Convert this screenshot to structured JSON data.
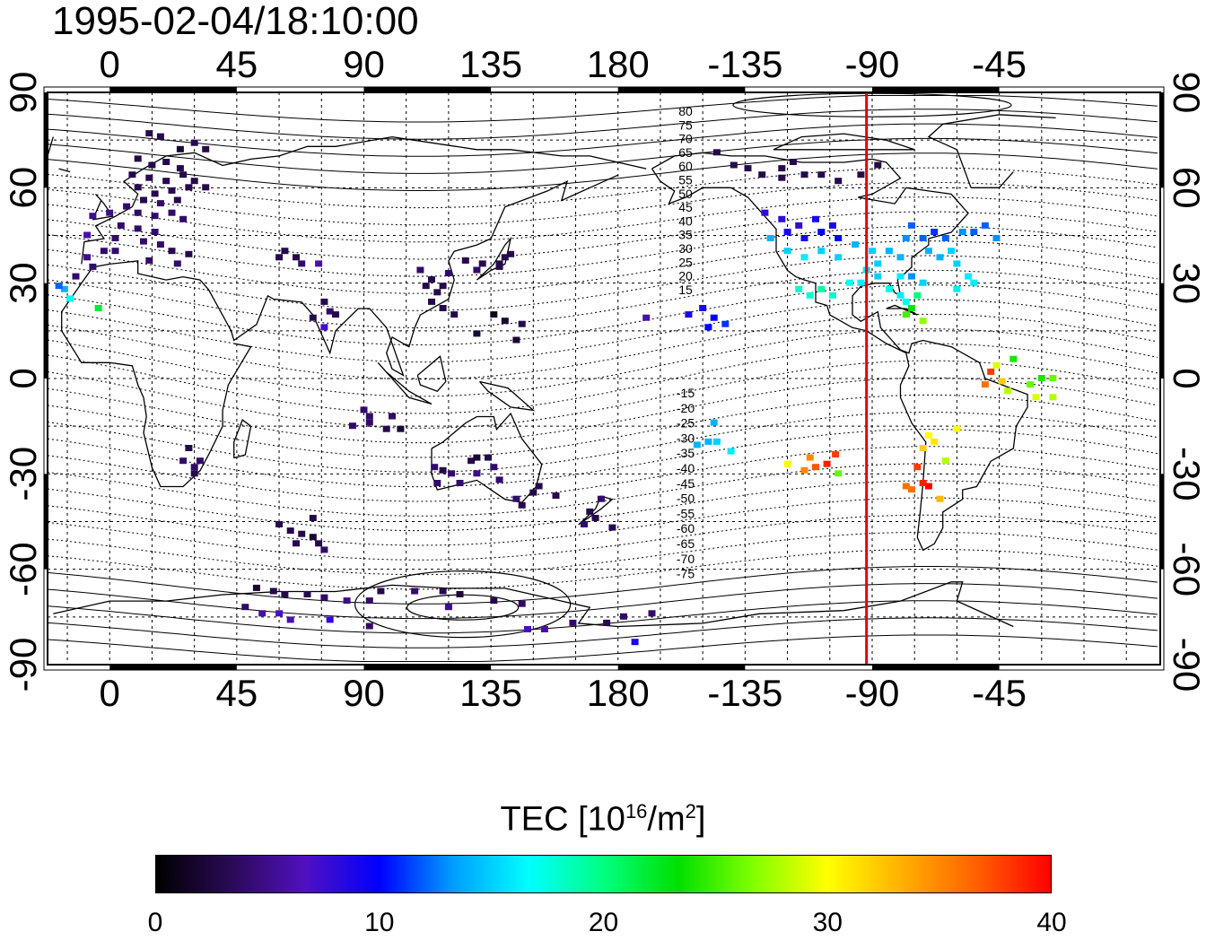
{
  "title": "1995-02-04/18:10:00",
  "x_top_ticks": [
    "0",
    "45",
    "90",
    "135",
    "180",
    "-135",
    "-90",
    "-45"
  ],
  "x_bottom_ticks": [
    "0",
    "45",
    "90",
    "135",
    "180",
    "-135",
    "-90",
    "-45"
  ],
  "y_left_ticks": [
    "90",
    "60",
    "30",
    "0",
    "-30",
    "-60",
    "-90"
  ],
  "y_right_ticks": [
    "90",
    "60",
    "30",
    "0",
    "-30",
    "-60",
    "-90"
  ],
  "contour_labels_north": [
    "80",
    "75",
    "70",
    "65",
    "60",
    "55",
    "50",
    "45",
    "40",
    "35",
    "30",
    "25",
    "20",
    "15"
  ],
  "contour_labels_south": [
    "-15",
    "-20",
    "-25",
    "-30",
    "-35",
    "-40",
    "-45",
    "-50",
    "-55",
    "-60",
    "-65",
    "-70",
    "-75"
  ],
  "colorbar": {
    "label_main": "TEC  [10",
    "label_sup": "16",
    "label_mid": "/m",
    "label_sup2": "2",
    "label_end": "]",
    "ticks": [
      "0",
      "10",
      "20",
      "30",
      "40"
    ],
    "stops": [
      "#000000",
      "#2a0a55",
      "#5010c0",
      "#0000ff",
      "#00a0ff",
      "#00ffff",
      "#00ff80",
      "#00e000",
      "#80ff00",
      "#ffff00",
      "#ffb000",
      "#ff6000",
      "#ff0000"
    ]
  },
  "chart_data": {
    "type": "scatter",
    "title": "1995-02-04/18:10:00",
    "xlim": [
      -22,
      372
    ],
    "ylim": [
      -90,
      90
    ],
    "xticks": [
      0,
      45,
      90,
      135,
      180,
      225,
      270,
      315
    ],
    "yticks": [
      90,
      60,
      30,
      0,
      -30,
      -60,
      -90
    ],
    "colorbar_range": [
      0,
      40
    ],
    "marker_longitude": -92,
    "marker_color": "#e00000",
    "points": [
      [
        14,
        77,
        3
      ],
      [
        18,
        76,
        3
      ],
      [
        30,
        74,
        3
      ],
      [
        34,
        72,
        3
      ],
      [
        25,
        72,
        2
      ],
      [
        10,
        69,
        3
      ],
      [
        15,
        67,
        3
      ],
      [
        20,
        68,
        3
      ],
      [
        25,
        66,
        3
      ],
      [
        8,
        64,
        3
      ],
      [
        14,
        63,
        3
      ],
      [
        20,
        62,
        3
      ],
      [
        26,
        64,
        3
      ],
      [
        30,
        62,
        3
      ],
      [
        10,
        60,
        3
      ],
      [
        16,
        58,
        3
      ],
      [
        22,
        59,
        3
      ],
      [
        28,
        60,
        3
      ],
      [
        34,
        60,
        3
      ],
      [
        12,
        56,
        3
      ],
      [
        18,
        55,
        4
      ],
      [
        24,
        56,
        3
      ],
      [
        6,
        54,
        4
      ],
      [
        0,
        52,
        5
      ],
      [
        -6,
        51,
        5
      ],
      [
        10,
        52,
        4
      ],
      [
        16,
        51,
        4
      ],
      [
        22,
        52,
        4
      ],
      [
        26,
        50,
        4
      ],
      [
        4,
        48,
        4
      ],
      [
        10,
        47,
        4
      ],
      [
        16,
        46,
        4
      ],
      [
        2,
        44,
        4
      ],
      [
        -8,
        45,
        6
      ],
      [
        12,
        43,
        4
      ],
      [
        18,
        42,
        4
      ],
      [
        22,
        40,
        3
      ],
      [
        -2,
        40,
        4
      ],
      [
        -8,
        38,
        5
      ],
      [
        2,
        40,
        4
      ],
      [
        14,
        37,
        4
      ],
      [
        -6,
        35,
        4
      ],
      [
        -12,
        32,
        4
      ],
      [
        24,
        36,
        4
      ],
      [
        28,
        39,
        3
      ],
      [
        -16,
        28,
        14
      ],
      [
        -14,
        25,
        17
      ],
      [
        -4,
        22,
        22
      ],
      [
        -18,
        29,
        12
      ],
      [
        60,
        38,
        3
      ],
      [
        66,
        38,
        3
      ],
      [
        68,
        36,
        4
      ],
      [
        62,
        40,
        3
      ],
      [
        74,
        36,
        6
      ],
      [
        76,
        24,
        3
      ],
      [
        78,
        21,
        4
      ],
      [
        80,
        20,
        3
      ],
      [
        76,
        16,
        7
      ],
      [
        72,
        19,
        3
      ],
      [
        110,
        34,
        4
      ],
      [
        114,
        31,
        3
      ],
      [
        118,
        29,
        3
      ],
      [
        116,
        27,
        3
      ],
      [
        120,
        33,
        4
      ],
      [
        112,
        29,
        3
      ],
      [
        126,
        37,
        3
      ],
      [
        130,
        34,
        4
      ],
      [
        132,
        36,
        3
      ],
      [
        138,
        36,
        3
      ],
      [
        140,
        38,
        3
      ],
      [
        142,
        39,
        3
      ],
      [
        138,
        35,
        3
      ],
      [
        118,
        22,
        3
      ],
      [
        122,
        20,
        3
      ],
      [
        114,
        24,
        3
      ],
      [
        136,
        20,
        1
      ],
      [
        140,
        18,
        2
      ],
      [
        146,
        17,
        3
      ],
      [
        144,
        12,
        2
      ],
      [
        130,
        14,
        2
      ],
      [
        90,
        -10,
        4
      ],
      [
        92,
        -12,
        4
      ],
      [
        100,
        -12,
        4
      ],
      [
        98,
        -16,
        3
      ],
      [
        103,
        -16,
        2
      ],
      [
        92,
        -14,
        4
      ],
      [
        86,
        -15,
        4
      ],
      [
        28,
        -22,
        3
      ],
      [
        26,
        -26,
        4
      ],
      [
        30,
        -28,
        4
      ],
      [
        32,
        -26,
        4
      ],
      [
        30,
        -30,
        3
      ],
      [
        115,
        -28,
        4
      ],
      [
        118,
        -29,
        3
      ],
      [
        121,
        -30,
        4
      ],
      [
        116,
        -33,
        4
      ],
      [
        124,
        -33,
        4
      ],
      [
        128,
        -26,
        3
      ],
      [
        130,
        -25,
        2
      ],
      [
        134,
        -25,
        3
      ],
      [
        136,
        -28,
        4
      ],
      [
        138,
        -32,
        4
      ],
      [
        130,
        -30,
        5
      ],
      [
        144,
        -38,
        4
      ],
      [
        146,
        -40,
        3
      ],
      [
        150,
        -36,
        3
      ],
      [
        152,
        -34,
        3
      ],
      [
        158,
        -37,
        3
      ],
      [
        170,
        -42,
        3
      ],
      [
        172,
        -44,
        3
      ],
      [
        168,
        -46,
        4
      ],
      [
        174,
        -38,
        4
      ],
      [
        178,
        -47,
        3
      ],
      [
        60,
        -46,
        3
      ],
      [
        64,
        -48,
        3
      ],
      [
        68,
        -49,
        3
      ],
      [
        72,
        -50,
        2
      ],
      [
        74,
        -52,
        3
      ],
      [
        66,
        -52,
        3
      ],
      [
        72,
        -44,
        3
      ],
      [
        76,
        -54,
        4
      ],
      [
        52,
        -66,
        2
      ],
      [
        58,
        -67,
        3
      ],
      [
        62,
        -68,
        3
      ],
      [
        70,
        -68,
        3
      ],
      [
        76,
        -69,
        4
      ],
      [
        84,
        -70,
        5
      ],
      [
        92,
        -70,
        4
      ],
      [
        96,
        -67,
        3
      ],
      [
        108,
        -67,
        4
      ],
      [
        118,
        -67,
        3
      ],
      [
        124,
        -68,
        2
      ],
      [
        136,
        -70,
        3
      ],
      [
        146,
        -71,
        4
      ],
      [
        48,
        -72,
        4
      ],
      [
        54,
        -74,
        6
      ],
      [
        60,
        -74,
        7
      ],
      [
        64,
        -76,
        6
      ],
      [
        78,
        -76,
        8
      ],
      [
        92,
        -78,
        4
      ],
      [
        120,
        -72,
        5
      ],
      [
        148,
        -79,
        7
      ],
      [
        154,
        -79,
        6
      ],
      [
        164,
        -77,
        4
      ],
      [
        176,
        -77,
        3
      ],
      [
        182,
        -75,
        4
      ],
      [
        186,
        -83,
        9
      ],
      [
        192,
        -74,
        4
      ],
      [
        210,
        22,
        9
      ],
      [
        214,
        19,
        10
      ],
      [
        218,
        17,
        11
      ],
      [
        212,
        16,
        10
      ],
      [
        205,
        20,
        9
      ],
      [
        190,
        19,
        6
      ],
      [
        208,
        -21,
        14
      ],
      [
        215,
        -20,
        15
      ],
      [
        220,
        -23,
        16
      ],
      [
        212,
        -20,
        14
      ],
      [
        214,
        -14,
        14
      ],
      [
        215,
        71,
        3
      ],
      [
        221,
        67,
        3
      ],
      [
        226,
        66,
        3
      ],
      [
        231,
        64,
        3
      ],
      [
        238,
        63,
        3
      ],
      [
        242,
        68,
        3
      ],
      [
        238,
        66,
        3
      ],
      [
        246,
        64,
        3
      ],
      [
        252,
        64,
        3
      ],
      [
        258,
        62,
        3
      ],
      [
        266,
        64,
        3
      ],
      [
        272,
        67,
        3
      ],
      [
        232,
        52,
        8
      ],
      [
        238,
        50,
        8
      ],
      [
        244,
        48,
        8
      ],
      [
        250,
        50,
        9
      ],
      [
        256,
        48,
        9
      ],
      [
        240,
        46,
        9
      ],
      [
        246,
        44,
        9
      ],
      [
        252,
        46,
        10
      ],
      [
        258,
        44,
        10
      ],
      [
        234,
        44,
        14
      ],
      [
        240,
        40,
        15
      ],
      [
        246,
        38,
        16
      ],
      [
        252,
        40,
        15
      ],
      [
        258,
        38,
        15
      ],
      [
        264,
        42,
        14
      ],
      [
        270,
        40,
        15
      ],
      [
        272,
        36,
        15
      ],
      [
        276,
        40,
        14
      ],
      [
        280,
        38,
        14
      ],
      [
        282,
        44,
        13
      ],
      [
        284,
        48,
        12
      ],
      [
        288,
        44,
        12
      ],
      [
        292,
        46,
        11
      ],
      [
        296,
        44,
        12
      ],
      [
        290,
        40,
        14
      ],
      [
        294,
        38,
        14
      ],
      [
        298,
        40,
        15
      ],
      [
        302,
        46,
        13
      ],
      [
        306,
        46,
        12
      ],
      [
        310,
        48,
        12
      ],
      [
        314,
        44,
        13
      ],
      [
        300,
        36,
        15
      ],
      [
        304,
        32,
        16
      ],
      [
        300,
        28,
        16
      ],
      [
        306,
        30,
        16
      ],
      [
        284,
        32,
        13
      ],
      [
        288,
        30,
        15
      ],
      [
        280,
        26,
        16
      ],
      [
        282,
        24,
        17
      ],
      [
        244,
        28,
        18
      ],
      [
        248,
        26,
        18
      ],
      [
        252,
        28,
        19
      ],
      [
        256,
        26,
        18
      ],
      [
        262,
        30,
        17
      ],
      [
        266,
        30,
        16
      ],
      [
        268,
        34,
        16
      ],
      [
        272,
        32,
        15
      ],
      [
        276,
        28,
        17
      ],
      [
        280,
        32,
        16
      ],
      [
        284,
        22,
        23
      ],
      [
        286,
        26,
        20
      ],
      [
        282,
        20,
        25
      ],
      [
        288,
        18,
        27
      ],
      [
        240,
        -27,
        30
      ],
      [
        246,
        -29,
        35
      ],
      [
        250,
        -28,
        37
      ],
      [
        254,
        -27,
        39
      ],
      [
        258,
        -30,
        26
      ],
      [
        257,
        -24,
        38
      ],
      [
        248,
        -25,
        35
      ],
      [
        290,
        -18,
        30
      ],
      [
        292,
        -20,
        31
      ],
      [
        288,
        -22,
        32
      ],
      [
        286,
        -28,
        38
      ],
      [
        290,
        -34,
        40
      ],
      [
        288,
        -33,
        39
      ],
      [
        284,
        -35,
        36
      ],
      [
        294,
        -38,
        33
      ],
      [
        296,
        -26,
        28
      ],
      [
        282,
        -34,
        36
      ],
      [
        310,
        -2,
        36
      ],
      [
        312,
        2,
        38
      ],
      [
        314,
        4,
        29
      ],
      [
        316,
        -1,
        32
      ],
      [
        318,
        -4,
        28
      ],
      [
        326,
        -2,
        26
      ],
      [
        330,
        0,
        24
      ],
      [
        334,
        0,
        26
      ],
      [
        328,
        -6,
        29
      ],
      [
        334,
        -6,
        28
      ],
      [
        320,
        6,
        24
      ],
      [
        300,
        -16,
        30
      ]
    ]
  }
}
